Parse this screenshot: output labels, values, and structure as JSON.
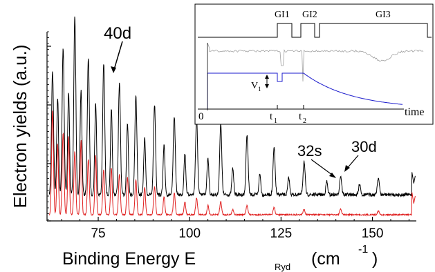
{
  "chart_data": [
    {
      "type": "line",
      "title": "",
      "xlabel_main": "Binding Energy E",
      "xlabel_sub": "Ryd",
      "xlabel_unit": "(cm",
      "xlabel_unit_sup": "-1",
      "xlabel_close": ")",
      "ylabel": "Electron yields (a.u.)",
      "xlim": [
        61,
        162
      ],
      "x_ticks": [
        75,
        100,
        125,
        150
      ],
      "annotations": [
        {
          "text": "40d",
          "x": 76.5
        },
        {
          "text": "32s",
          "x": 137.5
        },
        {
          "text": "30d",
          "x": 141.3
        }
      ],
      "series": [
        {
          "color": "#000000",
          "peaks_x": [
            62.5,
            65.4,
            68.6,
            72.3,
            76.5,
            80.8,
            85.3,
            90.4,
            95.8,
            101.9,
            108.5,
            115.7,
            123.1,
            131.3,
            141.3,
            151.6
          ],
          "peaks_h": [
            0.66,
            0.78,
            0.95,
            0.73,
            0.7,
            0.59,
            0.53,
            0.48,
            0.42,
            0.41,
            0.38,
            0.32,
            0.25,
            0.18,
            0.1,
            0.09
          ],
          "s_peaks_x": [
            63.9,
            66.9,
            70.3,
            74.3,
            78.6,
            83.0,
            87.7,
            93.0,
            98.7,
            105.0,
            111.8,
            119.2,
            127.1,
            137.5,
            146.5
          ],
          "s_peaks_h": [
            0.52,
            0.55,
            0.56,
            0.49,
            0.45,
            0.38,
            0.3,
            0.26,
            0.22,
            0.2,
            0.14,
            0.11,
            0.09,
            0.07,
            0.06
          ]
        },
        {
          "color": "#e02020",
          "peaks_x": [
            62.5,
            65.4,
            68.6,
            72.3,
            76.5,
            80.8,
            85.3,
            90.4,
            95.8,
            101.9,
            108.5,
            115.7,
            123.1,
            131.3,
            141.3,
            151.6
          ],
          "peaks_h": [
            0.56,
            0.44,
            0.34,
            0.3,
            0.24,
            0.22,
            0.19,
            0.15,
            0.12,
            0.09,
            0.07,
            0.05,
            0.04,
            0.03,
            0.03,
            0.02
          ],
          "s_peaks_x": [
            63.9,
            66.9,
            70.3,
            74.3,
            78.6,
            83.0,
            87.7,
            93.0,
            98.7,
            105.0,
            111.8
          ],
          "s_peaks_h": [
            0.38,
            0.42,
            0.4,
            0.32,
            0.25,
            0.2,
            0.15,
            0.1,
            0.07,
            0.05,
            0.03
          ]
        }
      ]
    },
    {
      "type": "line",
      "title": "",
      "time_label": "time",
      "pulse_labels": [
        "GI1",
        "GI2",
        "GI3"
      ],
      "time_markers": [
        "0",
        "t",
        "t"
      ],
      "time_marker_subs": [
        "",
        "1",
        "2"
      ],
      "voltage_label": "V",
      "voltage_label_sub": "1",
      "series": [
        {
          "name": "",
          "color": "#000000"
        },
        {
          "name": "",
          "color": "#a0a0a0"
        },
        {
          "name": "",
          "color": "#1a1acc"
        }
      ]
    }
  ]
}
